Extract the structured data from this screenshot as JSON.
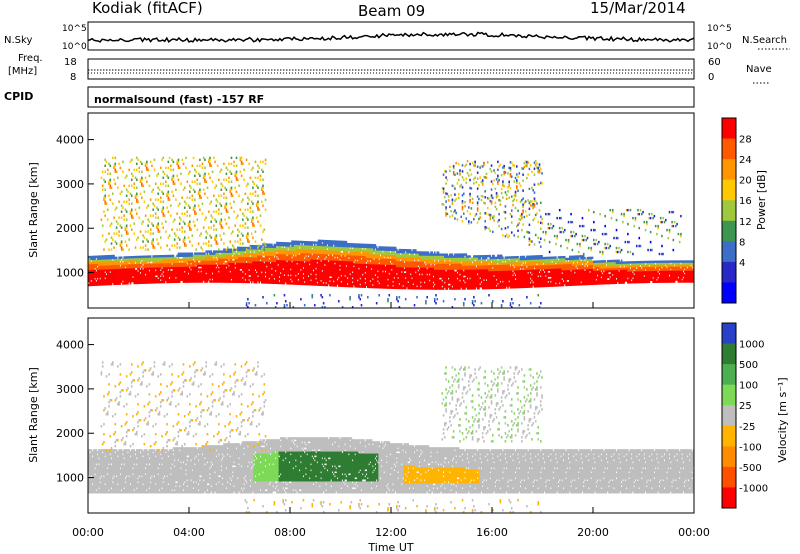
{
  "header": {
    "station": "Kodiak (fitACF)",
    "beam": "Beam 09",
    "date": "15/Mar/2014"
  },
  "summary": {
    "nsky_label": "N.Sky",
    "nsearch_label": "N.Search",
    "freq_label_line1": "Freq.",
    "freq_label_line2": "[MHz]",
    "nave_label": "Nave",
    "cpid_label": "CPID",
    "nsky_ticks": [
      "10^5",
      "10^0"
    ],
    "nsearch_ticks": [
      "10^5",
      "10^0"
    ],
    "freq_ticks": [
      "18",
      "8"
    ],
    "nave_ticks": [
      "60",
      "0"
    ],
    "cpid_text": "normalsound (fast) -157 RF"
  },
  "chart_data": [
    {
      "type": "heatmap",
      "panel": "power",
      "ylabel": "Slant Range [km]",
      "xlabel": "Time UT",
      "x_ticks": [
        "00:00",
        "04:00",
        "08:00",
        "12:00",
        "16:00",
        "20:00",
        "00:00"
      ],
      "y_ticks": [
        "1000",
        "2000",
        "3000",
        "4000"
      ],
      "ylim": [
        200,
        4600
      ],
      "xlim_hours": [
        0,
        24
      ],
      "colorbar": {
        "label": "Power [dB]",
        "ticks": [
          "28",
          "24",
          "20",
          "16",
          "12",
          "8",
          "4"
        ],
        "colors": [
          "#ff0000",
          "#ff5a00",
          "#ff9600",
          "#ffc800",
          "#a0c83c",
          "#3c9650",
          "#3c6ec8",
          "#2828c8",
          "#0000ff"
        ]
      }
    },
    {
      "type": "heatmap",
      "panel": "velocity",
      "ylabel": "Slant Range [km]",
      "xlabel": "Time UT",
      "x_ticks": [
        "00:00",
        "04:00",
        "08:00",
        "12:00",
        "16:00",
        "20:00",
        "00:00"
      ],
      "y_ticks": [
        "1000",
        "2000",
        "3000",
        "4000"
      ],
      "ylim": [
        200,
        4600
      ],
      "xlim_hours": [
        0,
        24
      ],
      "colorbar": {
        "label": "Velocity [m s⁻¹]",
        "ticks": [
          "1000",
          "500",
          "100",
          "25",
          "-25",
          "-100",
          "-500",
          "-1000"
        ],
        "colors": [
          "#2841c8",
          "#2e7d32",
          "#4caf50",
          "#7ed957",
          "#bebebe",
          "#ffb400",
          "#ff8c00",
          "#ff5000",
          "#ff0000"
        ]
      }
    }
  ],
  "palette": {
    "ground_scatter": "#bebebe"
  }
}
